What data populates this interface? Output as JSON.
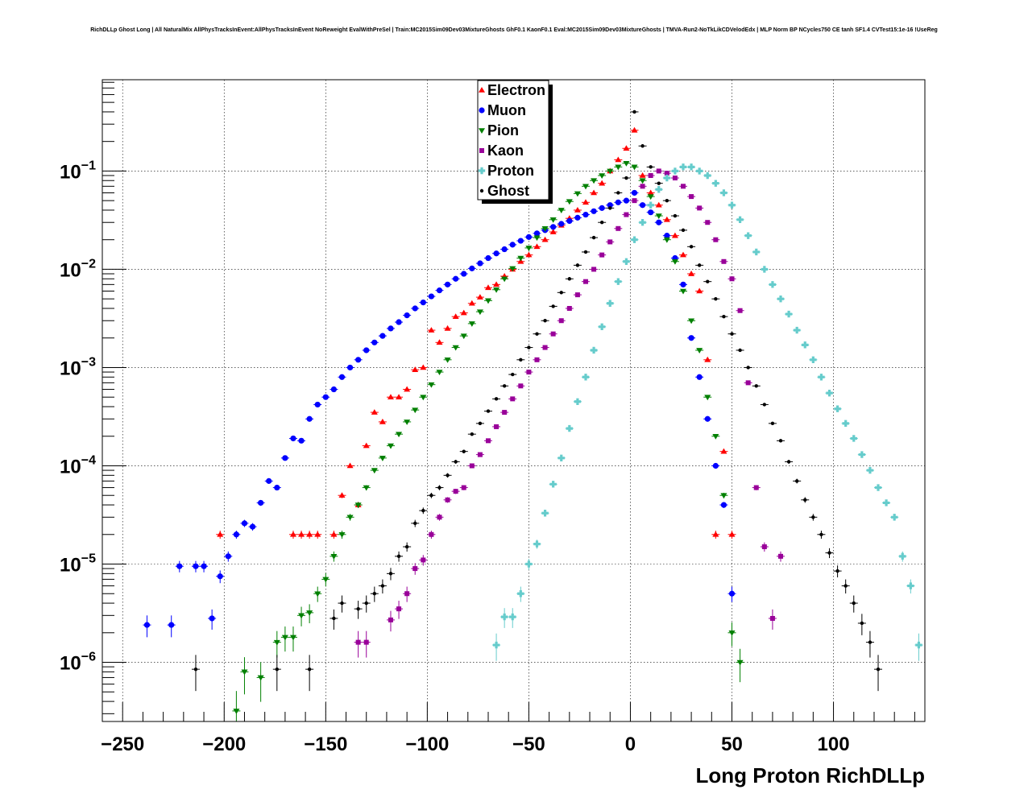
{
  "chart_data": {
    "type": "scatter",
    "title": "RichDLLp Ghost Long | All NaturalMix AllPhysTracksInEvent:AllPhysTracksInEvent NoReweight EvalWithPreSel | Train:MC2015Sim09Dev03MixtureGhosts GhF0.1 KaonF0.1 Eval:MC2015Sim09Dev03MixtureGhosts | TMVA-Run2-NoTkLikCDVelodEdx | MLP Norm BP NCycles750 CE tanh SF1.4 CVTest15:1e-16 !UseReg",
    "xlabel": "Long Proton RichDLLp",
    "ylabel": "",
    "xlim": [
      -260,
      145
    ],
    "ylim": [
      2.5e-07,
      0.85
    ],
    "y_scale": "log",
    "grid": true,
    "legend_position": "top-center",
    "x_ticks": [
      -250,
      -200,
      -150,
      -100,
      -50,
      0,
      50,
      100
    ],
    "x_tick_labels": [
      "−250",
      "−200",
      "−150",
      "−100",
      "−50",
      "0",
      "50",
      "100"
    ],
    "y_ticks": [
      1e-06,
      1e-05,
      0.0001,
      0.001,
      0.01,
      0.1
    ],
    "y_tick_exponents": [
      "−6",
      "−5",
      "−4",
      "−3",
      "−2",
      "−1"
    ],
    "series": [
      {
        "name": "Electron",
        "color": "#ff0000",
        "marker": "triangle-up",
        "x": [
          -202,
          -166,
          -162,
          -158,
          -154,
          -146,
          -142,
          -138,
          -134,
          -130,
          -126,
          -122,
          -118,
          -114,
          -110,
          -106,
          -102,
          -98,
          -94,
          -90,
          -86,
          -82,
          -78,
          -74,
          -70,
          -66,
          -62,
          -58,
          -54,
          -50,
          -46,
          -42,
          -38,
          -34,
          -30,
          -26,
          -22,
          -18,
          -14,
          -10,
          -6,
          -2,
          2,
          6,
          10,
          14,
          18,
          22,
          26,
          30,
          34,
          38,
          42,
          46,
          50
        ],
        "y": [
          2e-05,
          2e-05,
          2e-05,
          2e-05,
          2e-05,
          2e-05,
          5e-05,
          0.0001,
          4e-05,
          0.00016,
          0.00035,
          0.00028,
          0.0005,
          0.0005,
          0.0006,
          0.00095,
          0.001,
          0.0024,
          0.0018,
          0.0025,
          0.0033,
          0.0036,
          0.0045,
          0.0052,
          0.0065,
          0.007,
          0.0085,
          0.01,
          0.012,
          0.014,
          0.017,
          0.02,
          0.024,
          0.028,
          0.033,
          0.04,
          0.048,
          0.06,
          0.075,
          0.1,
          0.13,
          0.17,
          0.26,
          0.09,
          0.06,
          0.045,
          0.032,
          0.022,
          0.014,
          0.009,
          0.006,
          0.0012,
          2e-05,
          0.00014,
          2e-05
        ]
      },
      {
        "name": "Muon",
        "color": "#0000ff",
        "marker": "circle",
        "x": [
          -238,
          -226,
          -222,
          -214,
          -210,
          -206,
          -202,
          -198,
          -194,
          -190,
          -186,
          -182,
          -178,
          -174,
          -170,
          -166,
          -162,
          -158,
          -154,
          -150,
          -146,
          -142,
          -138,
          -134,
          -130,
          -126,
          -122,
          -118,
          -114,
          -110,
          -106,
          -102,
          -98,
          -94,
          -90,
          -86,
          -82,
          -78,
          -74,
          -70,
          -66,
          -62,
          -58,
          -54,
          -50,
          -46,
          -42,
          -38,
          -34,
          -30,
          -26,
          -22,
          -18,
          -14,
          -10,
          -6,
          -2,
          2,
          6,
          10,
          14,
          18,
          22,
          26,
          30,
          34,
          38,
          42,
          46,
          50
        ],
        "y": [
          2.4e-06,
          2.4e-06,
          9.5e-06,
          9.5e-06,
          9.5e-06,
          2.8e-06,
          7.5e-06,
          1.2e-05,
          2e-05,
          2.6e-05,
          2.4e-05,
          4.2e-05,
          7e-05,
          6e-05,
          0.00012,
          0.00019,
          0.00018,
          0.0003,
          0.00042,
          0.0005,
          0.0006,
          0.0008,
          0.001,
          0.0012,
          0.0015,
          0.0018,
          0.0021,
          0.0025,
          0.0029,
          0.0034,
          0.004,
          0.0046,
          0.0053,
          0.0061,
          0.007,
          0.008,
          0.009,
          0.0102,
          0.0115,
          0.013,
          0.0145,
          0.016,
          0.0178,
          0.0195,
          0.0213,
          0.0232,
          0.025,
          0.027,
          0.029,
          0.031,
          0.0335,
          0.036,
          0.039,
          0.042,
          0.045,
          0.048,
          0.05,
          0.06,
          0.045,
          0.038,
          0.03,
          0.022,
          0.013,
          0.007,
          0.002,
          0.0008,
          0.0003,
          0.0001,
          4e-05,
          5e-06
        ]
      },
      {
        "name": "Pion",
        "color": "#008000",
        "marker": "triangle-down",
        "x": [
          -194,
          -190,
          -182,
          -174,
          -170,
          -166,
          -162,
          -158,
          -154,
          -150,
          -146,
          -142,
          -138,
          -134,
          -130,
          -126,
          -122,
          -118,
          -114,
          -110,
          -106,
          -102,
          -98,
          -94,
          -90,
          -86,
          -82,
          -78,
          -74,
          -70,
          -66,
          -62,
          -58,
          -54,
          -50,
          -46,
          -42,
          -38,
          -34,
          -30,
          -26,
          -22,
          -18,
          -14,
          -10,
          -6,
          -2,
          2,
          6,
          10,
          14,
          18,
          22,
          26,
          30,
          34,
          38,
          42,
          46,
          50,
          54
        ],
        "y": [
          3.2e-07,
          8e-07,
          7e-07,
          1.6e-06,
          1.8e-06,
          1.8e-06,
          3e-06,
          3.2e-06,
          5e-06,
          7e-06,
          1.2e-05,
          2e-05,
          3e-05,
          4e-05,
          6e-05,
          9e-05,
          0.00012,
          0.00016,
          0.00021,
          0.00028,
          0.00037,
          0.0005,
          0.00067,
          0.0009,
          0.0012,
          0.0016,
          0.0021,
          0.0028,
          0.0037,
          0.0048,
          0.0062,
          0.008,
          0.0102,
          0.013,
          0.0165,
          0.021,
          0.026,
          0.032,
          0.04,
          0.049,
          0.059,
          0.07,
          0.08,
          0.09,
          0.1,
          0.11,
          0.12,
          0.11,
          0.08,
          0.055,
          0.035,
          0.02,
          0.012,
          0.006,
          0.003,
          0.0015,
          0.0005,
          0.0002,
          5e-05,
          2e-06,
          1e-06
        ]
      },
      {
        "name": "Kaon",
        "color": "#990099",
        "marker": "square",
        "x": [
          -134,
          -130,
          -118,
          -114,
          -110,
          -106,
          -102,
          -98,
          -94,
          -90,
          -86,
          -82,
          -78,
          -74,
          -70,
          -66,
          -62,
          -58,
          -54,
          -50,
          -46,
          -42,
          -38,
          -34,
          -30,
          -26,
          -22,
          -18,
          -14,
          -10,
          -6,
          -2,
          2,
          6,
          10,
          14,
          18,
          22,
          26,
          30,
          34,
          38,
          42,
          46,
          50,
          54,
          58,
          62,
          66,
          70,
          74
        ],
        "y": [
          1.6e-06,
          1.6e-06,
          2.7e-06,
          3.5e-06,
          5e-06,
          9e-06,
          1.1e-05,
          2e-05,
          3e-05,
          4.5e-05,
          5.5e-05,
          6e-05,
          0.0001,
          0.00013,
          0.00018,
          0.00025,
          0.00035,
          0.00048,
          0.00065,
          0.0009,
          0.0012,
          0.0016,
          0.0022,
          0.003,
          0.004,
          0.0055,
          0.0075,
          0.01,
          0.014,
          0.019,
          0.026,
          0.036,
          0.05,
          0.07,
          0.09,
          0.1,
          0.095,
          0.085,
          0.07,
          0.055,
          0.042,
          0.03,
          0.02,
          0.012,
          0.008,
          0.0038,
          0.0007,
          6e-05,
          1.5e-05,
          2.8e-06,
          1.2e-05
        ]
      },
      {
        "name": "Proton",
        "color": "#66cccc",
        "marker": "cross",
        "x": [
          -66,
          -62,
          -58,
          -54,
          -50,
          -46,
          -42,
          -38,
          -34,
          -30,
          -26,
          -22,
          -18,
          -14,
          -10,
          -6,
          -2,
          2,
          6,
          10,
          14,
          18,
          22,
          26,
          30,
          34,
          38,
          42,
          46,
          50,
          54,
          58,
          62,
          66,
          70,
          74,
          78,
          82,
          86,
          90,
          94,
          98,
          102,
          106,
          110,
          114,
          118,
          122,
          126,
          130,
          134,
          138,
          142
        ],
        "y": [
          1.5e-06,
          2.9e-06,
          2.9e-06,
          5e-06,
          1e-05,
          1.6e-05,
          3.3e-05,
          6.5e-05,
          0.00012,
          0.00024,
          0.00045,
          0.0008,
          0.0015,
          0.0026,
          0.0045,
          0.0075,
          0.012,
          0.02,
          0.03,
          0.045,
          0.065,
          0.085,
          0.1,
          0.11,
          0.11,
          0.1,
          0.09,
          0.075,
          0.06,
          0.045,
          0.032,
          0.022,
          0.015,
          0.01,
          0.007,
          0.005,
          0.0035,
          0.0024,
          0.0017,
          0.0012,
          0.0008,
          0.00055,
          0.00038,
          0.00027,
          0.00019,
          0.00013,
          9e-05,
          6e-05,
          4.2e-05,
          3e-05,
          1.2e-05,
          6e-06,
          1.5e-06
        ]
      },
      {
        "name": "Ghost",
        "color": "#000000",
        "marker": "star",
        "x": [
          -214,
          -174,
          -158,
          -146,
          -142,
          -134,
          -130,
          -126,
          -122,
          -118,
          -114,
          -110,
          -106,
          -102,
          -98,
          -94,
          -90,
          -86,
          -82,
          -78,
          -74,
          -70,
          -66,
          -62,
          -58,
          -54,
          -50,
          -46,
          -42,
          -38,
          -34,
          -30,
          -26,
          -22,
          -18,
          -14,
          -10,
          -6,
          -2,
          2,
          6,
          10,
          14,
          18,
          22,
          26,
          30,
          34,
          38,
          42,
          46,
          50,
          54,
          58,
          62,
          66,
          70,
          74,
          78,
          82,
          86,
          90,
          94,
          98,
          102,
          106,
          110,
          114,
          118,
          122
        ],
        "y": [
          8.5e-07,
          8.5e-07,
          8.5e-07,
          2.8e-06,
          4e-06,
          3.5e-06,
          4e-06,
          5e-06,
          6e-06,
          8e-06,
          1.2e-05,
          1.5e-05,
          2.6e-05,
          3.5e-05,
          5e-05,
          6e-05,
          8e-05,
          0.00011,
          0.00014,
          0.00021,
          0.00027,
          0.00036,
          0.00048,
          0.00065,
          0.00085,
          0.0012,
          0.0016,
          0.0022,
          0.003,
          0.0042,
          0.0058,
          0.008,
          0.011,
          0.015,
          0.021,
          0.03,
          0.042,
          0.06,
          0.085,
          0.4,
          0.18,
          0.11,
          0.075,
          0.05,
          0.035,
          0.025,
          0.017,
          0.011,
          0.0075,
          0.005,
          0.0033,
          0.0022,
          0.0015,
          0.001,
          0.00065,
          0.00042,
          0.00027,
          0.00018,
          0.00011,
          7e-05,
          4.5e-05,
          3e-05,
          2e-05,
          1.3e-05,
          8.5e-06,
          6e-06,
          4e-06,
          2.5e-06,
          1.6e-06,
          8.5e-07
        ]
      }
    ]
  }
}
